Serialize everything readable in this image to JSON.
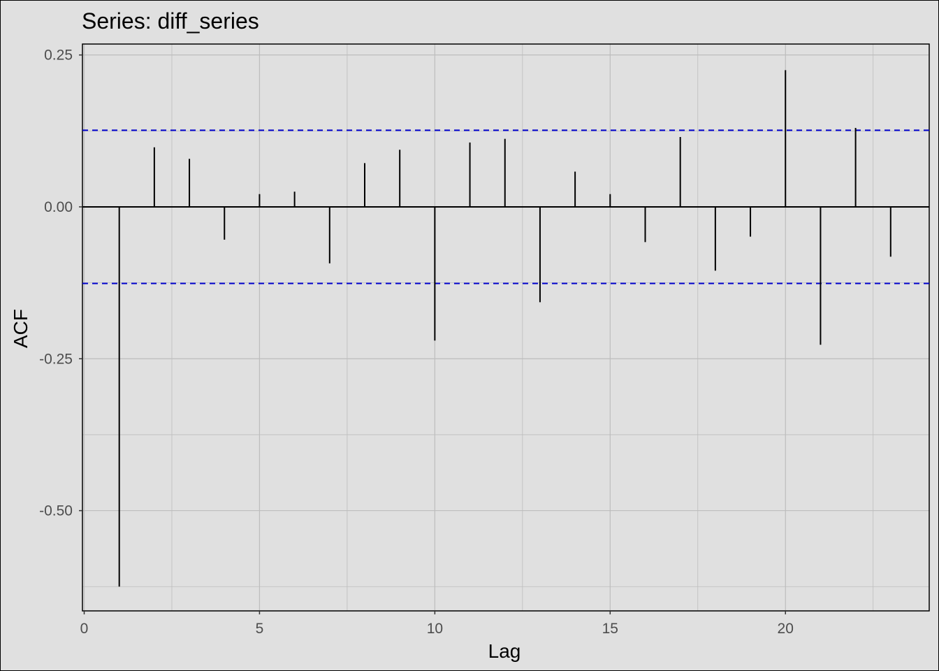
{
  "chart_data": {
    "type": "bar",
    "title": "Series: diff_series",
    "xlabel": "Lag",
    "ylabel": "ACF",
    "xlim": [
      -0.05,
      24.1
    ],
    "ylim": [
      -0.665,
      0.268
    ],
    "x_ticks": [
      0,
      5,
      10,
      15,
      20
    ],
    "x_tick_labels": [
      "0",
      "5",
      "10",
      "15",
      "20"
    ],
    "y_ticks": [
      0.25,
      0.0,
      -0.25,
      -0.5
    ],
    "y_tick_labels": [
      "0.25",
      "0.00",
      "-0.25",
      "-0.50"
    ],
    "y_minor_gridlines": [
      0.125,
      -0.125,
      -0.375,
      -0.625
    ],
    "x_minor_gridlines": [
      2.5,
      7.5,
      12.5,
      17.5,
      22.5
    ],
    "grid": true,
    "confidence_bounds": [
      0.126,
      -0.126
    ],
    "confidence_color": "#0000cc",
    "bar_color": "#000000",
    "series": [
      {
        "x": [
          1,
          2,
          3,
          4,
          5,
          6,
          7,
          8,
          9,
          10,
          11,
          12,
          13,
          14,
          15,
          16,
          17,
          18,
          19,
          20,
          21,
          22,
          23
        ],
        "values": [
          -0.625,
          0.098,
          0.079,
          -0.054,
          0.021,
          0.025,
          -0.093,
          0.072,
          0.094,
          -0.22,
          0.106,
          0.112,
          -0.157,
          0.058,
          0.021,
          -0.058,
          0.115,
          -0.105,
          -0.049,
          0.225,
          -0.227,
          0.13,
          -0.082
        ]
      }
    ]
  }
}
